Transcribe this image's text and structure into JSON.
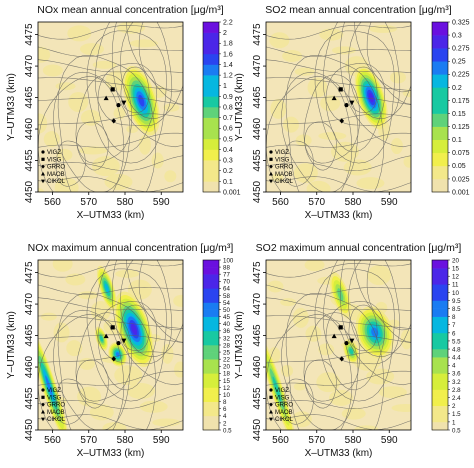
{
  "chart_data": [
    {
      "type": "heatmap",
      "title": "NOx mean annual concentration [μg/m³]",
      "title_sub": "x",
      "xlabel": "X–UTM33 (km)",
      "ylabel": "Y–UTM33 (km)",
      "xlim": [
        556,
        596
      ],
      "ylim": [
        4450,
        4477
      ],
      "xticks": [
        560,
        570,
        580,
        590
      ],
      "yticks": [
        4450,
        4455,
        4460,
        4465,
        4470,
        4475
      ],
      "colorbar_levels": [
        "0.001",
        "0.1",
        "0.2",
        "0.3",
        "0.4",
        "0.5",
        "0.6",
        "0.7",
        "0.8",
        "0.9",
        "1",
        "1.2",
        "1.4",
        "1.6",
        "1.8",
        "2",
        "2.2"
      ],
      "hotspots": [
        {
          "x": 584.5,
          "y": 4464.5,
          "rx": 3.4,
          "ry": 4.6,
          "peak": 1.8
        }
      ],
      "stations": [
        {
          "name": "VIGZ",
          "marker": "circle",
          "x": 578.2,
          "y": 4463.8
        },
        {
          "name": "VISG",
          "marker": "square",
          "x": 576.6,
          "y": 4466.3
        },
        {
          "name": "GRRO",
          "marker": "diamond",
          "x": 576.9,
          "y": 4461.3
        },
        {
          "name": "MAOB",
          "marker": "triangle-up",
          "x": 574.8,
          "y": 4464.9
        },
        {
          "name": "CIKOL",
          "marker": "triangle-down",
          "x": 579.7,
          "y": 4464.2
        }
      ]
    },
    {
      "type": "heatmap",
      "title": "SO2 mean annual concentration [μg/m³]",
      "title_sub": "2",
      "xlabel": "X–UTM33 (km)",
      "ylabel": "Y–UTM33 (km)",
      "xlim": [
        556,
        596
      ],
      "ylim": [
        4450,
        4477
      ],
      "xticks": [
        560,
        570,
        580,
        590
      ],
      "yticks": [
        4450,
        4455,
        4460,
        4465,
        4470,
        4475
      ],
      "colorbar_levels": [
        "0.001",
        "0.025",
        "0.05",
        "0.075",
        "0.1",
        "0.125",
        "0.15",
        "0.175",
        "0.2",
        "0.225",
        "0.25",
        "0.275",
        "0.3",
        "0.325"
      ],
      "hotspots": [
        {
          "x": 585.0,
          "y": 4465.0,
          "rx": 3.0,
          "ry": 4.2,
          "peak": 0.3
        }
      ],
      "stations": [
        {
          "name": "VIGZ",
          "marker": "circle",
          "x": 578.2,
          "y": 4463.8
        },
        {
          "name": "VISG",
          "marker": "square",
          "x": 576.6,
          "y": 4466.3
        },
        {
          "name": "GRRO",
          "marker": "diamond",
          "x": 576.9,
          "y": 4461.3
        },
        {
          "name": "MAOB",
          "marker": "triangle-up",
          "x": 574.8,
          "y": 4464.9
        },
        {
          "name": "CIKOL",
          "marker": "triangle-down",
          "x": 579.7,
          "y": 4464.2
        }
      ]
    },
    {
      "type": "heatmap",
      "title": "NOx maximum annual concentration [μg/m³]",
      "title_sub": "x",
      "xlabel": "X–UTM33 (km)",
      "ylabel": "Y–UTM33 (km)",
      "xlim": [
        556,
        596
      ],
      "ylim": [
        4450,
        4477
      ],
      "xticks": [
        560,
        570,
        580,
        590
      ],
      "yticks": [
        4450,
        4455,
        4460,
        4465,
        4470,
        4475
      ],
      "colorbar_levels": [
        "0.5",
        "2",
        "4",
        "6",
        "8",
        "10",
        "12",
        "15",
        "18",
        "20",
        "22",
        "25",
        "28",
        "32",
        "36",
        "40",
        "45",
        "50",
        "54",
        "58",
        "64",
        "70",
        "77",
        "88",
        "100"
      ],
      "hotspots": [
        {
          "x": 559.0,
          "y": 4457.0,
          "rx": 1.6,
          "ry": 7.5,
          "peak": 70
        },
        {
          "x": 582.5,
          "y": 4466.0,
          "rx": 3.6,
          "ry": 5.0,
          "peak": 88
        },
        {
          "x": 575.0,
          "y": 4472.5,
          "rx": 1.6,
          "ry": 3.0,
          "peak": 64
        },
        {
          "x": 578.0,
          "y": 4462.0,
          "rx": 2.0,
          "ry": 1.6,
          "peak": 77
        },
        {
          "x": 573.5,
          "y": 4464.5,
          "rx": 1.2,
          "ry": 1.6,
          "peak": 58
        }
      ],
      "stations": [
        {
          "name": "VIGZ",
          "marker": "circle",
          "x": 578.2,
          "y": 4463.8
        },
        {
          "name": "VISG",
          "marker": "square",
          "x": 576.6,
          "y": 4466.3
        },
        {
          "name": "GRRO",
          "marker": "diamond",
          "x": 576.9,
          "y": 4461.3
        },
        {
          "name": "MAOB",
          "marker": "triangle-up",
          "x": 574.8,
          "y": 4464.9
        },
        {
          "name": "CIKOL",
          "marker": "triangle-down",
          "x": 579.7,
          "y": 4464.2
        }
      ]
    },
    {
      "type": "heatmap",
      "title": "SO2 maximum annual concentration [μg/m³]",
      "title_sub": "2",
      "xlabel": "X–UTM33 (km)",
      "ylabel": "Y–UTM33 (km)",
      "xlim": [
        556,
        596
      ],
      "ylim": [
        4450,
        4477
      ],
      "xticks": [
        560,
        570,
        580,
        590
      ],
      "yticks": [
        4450,
        4455,
        4460,
        4465,
        4470,
        4475
      ],
      "colorbar_levels": [
        "0.5",
        "1",
        "1.5",
        "2",
        "2.4",
        "2.8",
        "3.2",
        "3.6",
        "4",
        "4.4",
        "4.8",
        "5.5",
        "6",
        "7",
        "8",
        "8.5",
        "9.5",
        "10",
        "11",
        "12",
        "15",
        "20"
      ],
      "hotspots": [
        {
          "x": 559.0,
          "y": 4456.5,
          "rx": 1.4,
          "ry": 7.0,
          "peak": 11
        },
        {
          "x": 586.0,
          "y": 4465.5,
          "rx": 4.0,
          "ry": 3.4,
          "peak": 15
        },
        {
          "x": 576.5,
          "y": 4471.5,
          "rx": 1.8,
          "ry": 3.0,
          "peak": 8.5
        },
        {
          "x": 579.5,
          "y": 4462.5,
          "rx": 1.6,
          "ry": 1.6,
          "peak": 10
        }
      ],
      "stations": [
        {
          "name": "VIGZ",
          "marker": "circle",
          "x": 578.2,
          "y": 4463.8
        },
        {
          "name": "VISG",
          "marker": "square",
          "x": 576.6,
          "y": 4466.3
        },
        {
          "name": "GRRO",
          "marker": "diamond",
          "x": 576.9,
          "y": 4461.3
        },
        {
          "name": "MAOB",
          "marker": "triangle-up",
          "x": 574.8,
          "y": 4464.9
        },
        {
          "name": "CIKOL",
          "marker": "triangle-down",
          "x": 579.7,
          "y": 4464.2
        }
      ]
    }
  ],
  "legend_entries": [
    "VIGZ",
    "VISG",
    "GRRO",
    "MAOB",
    "CIKOL"
  ],
  "colors": {
    "background": "#f3e5b8",
    "low": "#eedfa9",
    "scale": [
      "#f0e2ad",
      "#f3e88a",
      "#f1ef4c",
      "#d6ee3b",
      "#a8e24e",
      "#5fd27a",
      "#18c9a2",
      "#06b7e0",
      "#1a7cf2",
      "#2a44f0",
      "#4b26e8",
      "#6a10df"
    ],
    "contour": "#5b5b5b"
  }
}
